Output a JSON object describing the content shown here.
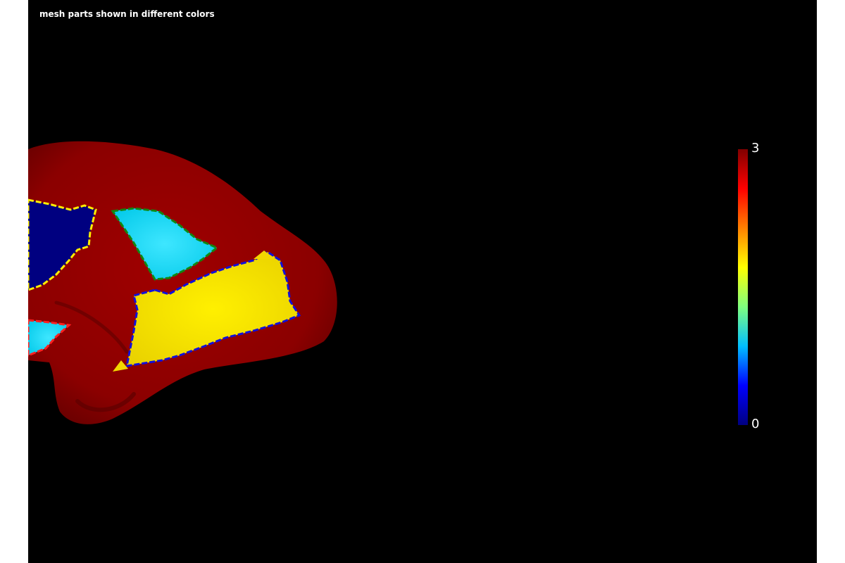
{
  "viewer": {
    "title": "mesh parts shown in different colors"
  },
  "colorbar": {
    "max_label": "3",
    "min_label": "0",
    "colormap": "jet",
    "stops": [
      "#000080",
      "#0000ff",
      "#00bfff",
      "#7fff7f",
      "#ffff00",
      "#ff8000",
      "#ff0000",
      "#800000"
    ]
  },
  "mesh": {
    "part_colors": {
      "part_0": "#000080",
      "part_1": "#00d5f0",
      "part_2": "#f2d800",
      "part_3": "#8b0000"
    },
    "edge_colors": [
      "#ffee00",
      "#118811",
      "#1010dd",
      "#ff2020"
    ]
  }
}
